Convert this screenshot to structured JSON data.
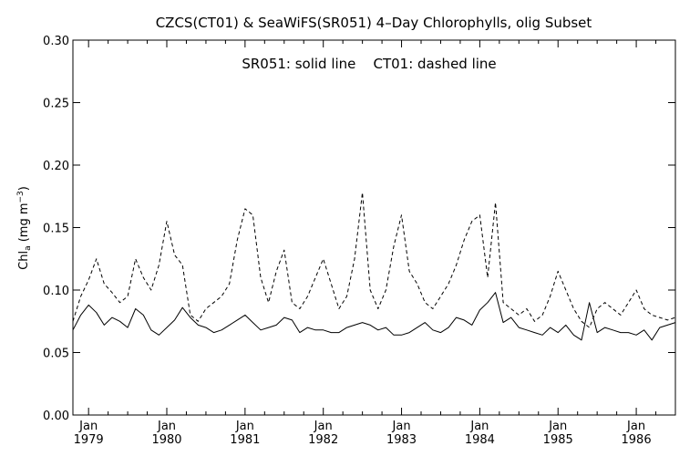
{
  "chart_data": {
    "type": "line",
    "title": "CZCS(CT01) & SeaWiFS(SR051) 4–Day Chlorophylls, olig Subset",
    "annotation": "SR051: solid line    CT01: dashed line",
    "ylabel": {
      "base": "Chl",
      "sub": "a",
      "unit_open": " (mg m",
      "sup": "−3",
      "unit_close": ")"
    },
    "xlim": [
      1978.8,
      1986.5
    ],
    "ylim": [
      0.0,
      0.3
    ],
    "y_ticks": [
      0.0,
      0.05,
      0.1,
      0.15,
      0.2,
      0.25,
      0.3
    ],
    "y_tick_labels": [
      "0.00",
      "0.05",
      "0.10",
      "0.15",
      "0.20",
      "0.25",
      "0.30"
    ],
    "x_ticks": [
      {
        "value": 1979,
        "month": "Jan",
        "year": "1979"
      },
      {
        "value": 1980,
        "month": "Jan",
        "year": "1980"
      },
      {
        "value": 1981,
        "month": "Jan",
        "year": "1981"
      },
      {
        "value": 1982,
        "month": "Jan",
        "year": "1982"
      },
      {
        "value": 1983,
        "month": "Jan",
        "year": "1983"
      },
      {
        "value": 1984,
        "month": "Jan",
        "year": "1984"
      },
      {
        "value": 1985,
        "month": "Jan",
        "year": "1985"
      },
      {
        "value": 1986,
        "month": "Jan",
        "year": "1986"
      }
    ],
    "grid": false,
    "series": [
      {
        "name": "SR051",
        "style": "solid",
        "x": [
          1978.8,
          1978.9,
          1979.0,
          1979.1,
          1979.2,
          1979.3,
          1979.4,
          1979.5,
          1979.6,
          1979.7,
          1979.8,
          1979.9,
          1980.0,
          1980.1,
          1980.2,
          1980.3,
          1980.4,
          1980.5,
          1980.6,
          1980.7,
          1980.8,
          1980.9,
          1981.0,
          1981.1,
          1981.2,
          1981.3,
          1981.4,
          1981.5,
          1981.6,
          1981.7,
          1981.8,
          1981.9,
          1982.0,
          1982.1,
          1982.2,
          1982.3,
          1982.4,
          1982.5,
          1982.6,
          1982.7,
          1982.8,
          1982.9,
          1983.0,
          1983.1,
          1983.2,
          1983.3,
          1983.4,
          1983.5,
          1983.6,
          1983.7,
          1983.8,
          1983.9,
          1984.0,
          1984.1,
          1984.2,
          1984.3,
          1984.4,
          1984.5,
          1984.6,
          1984.7,
          1984.8,
          1984.9,
          1985.0,
          1985.1,
          1985.2,
          1985.3,
          1985.4,
          1985.5,
          1985.6,
          1985.7,
          1985.8,
          1985.9,
          1986.0,
          1986.1,
          1986.2,
          1986.3,
          1986.4,
          1986.5
        ],
        "y": [
          0.068,
          0.08,
          0.088,
          0.082,
          0.072,
          0.078,
          0.075,
          0.07,
          0.085,
          0.08,
          0.068,
          0.064,
          0.07,
          0.076,
          0.086,
          0.078,
          0.072,
          0.07,
          0.066,
          0.068,
          0.072,
          0.076,
          0.08,
          0.074,
          0.068,
          0.07,
          0.072,
          0.078,
          0.076,
          0.066,
          0.07,
          0.068,
          0.068,
          0.066,
          0.066,
          0.07,
          0.072,
          0.074,
          0.072,
          0.068,
          0.07,
          0.064,
          0.064,
          0.066,
          0.07,
          0.074,
          0.068,
          0.066,
          0.07,
          0.078,
          0.076,
          0.072,
          0.084,
          0.09,
          0.098,
          0.074,
          0.078,
          0.07,
          0.068,
          0.066,
          0.064,
          0.07,
          0.066,
          0.072,
          0.064,
          0.06,
          0.09,
          0.066,
          0.07,
          0.068,
          0.066,
          0.066,
          0.064,
          0.068,
          0.06,
          0.07,
          0.072,
          0.074
        ]
      },
      {
        "name": "CT01",
        "style": "dashed",
        "x": [
          1978.8,
          1978.9,
          1979.0,
          1979.1,
          1979.2,
          1979.3,
          1979.4,
          1979.5,
          1979.6,
          1979.7,
          1979.8,
          1979.9,
          1980.0,
          1980.1,
          1980.2,
          1980.3,
          1980.4,
          1980.5,
          1980.6,
          1980.7,
          1980.8,
          1980.9,
          1981.0,
          1981.1,
          1981.2,
          1981.3,
          1981.4,
          1981.5,
          1981.6,
          1981.7,
          1981.8,
          1981.9,
          1982.0,
          1982.1,
          1982.2,
          1982.3,
          1982.4,
          1982.5,
          1982.6,
          1982.7,
          1982.8,
          1982.9,
          1983.0,
          1983.1,
          1983.2,
          1983.3,
          1983.4,
          1983.5,
          1983.6,
          1983.7,
          1983.8,
          1983.9,
          1984.0,
          1984.1,
          1984.2,
          1984.3,
          1984.4,
          1984.5,
          1984.6,
          1984.7,
          1984.8,
          1984.9,
          1985.0,
          1985.1,
          1985.2,
          1985.3,
          1985.4,
          1985.5,
          1985.6,
          1985.7,
          1985.8,
          1985.9,
          1986.0,
          1986.1,
          1986.2,
          1986.3,
          1986.4,
          1986.5
        ],
        "y": [
          0.075,
          0.095,
          0.108,
          0.125,
          0.105,
          0.098,
          0.09,
          0.095,
          0.125,
          0.11,
          0.1,
          0.12,
          0.155,
          0.128,
          0.12,
          0.08,
          0.075,
          0.085,
          0.09,
          0.095,
          0.105,
          0.14,
          0.165,
          0.16,
          0.11,
          0.09,
          0.115,
          0.132,
          0.09,
          0.085,
          0.095,
          0.11,
          0.125,
          0.105,
          0.085,
          0.095,
          0.125,
          0.178,
          0.1,
          0.085,
          0.1,
          0.135,
          0.16,
          0.115,
          0.105,
          0.09,
          0.085,
          0.095,
          0.105,
          0.12,
          0.14,
          0.155,
          0.16,
          0.11,
          0.17,
          0.09,
          0.085,
          0.08,
          0.085,
          0.075,
          0.08,
          0.095,
          0.115,
          0.1,
          0.085,
          0.075,
          0.07,
          0.085,
          0.09,
          0.085,
          0.08,
          0.09,
          0.1,
          0.085,
          0.08,
          0.078,
          0.076,
          0.078
        ]
      }
    ]
  }
}
